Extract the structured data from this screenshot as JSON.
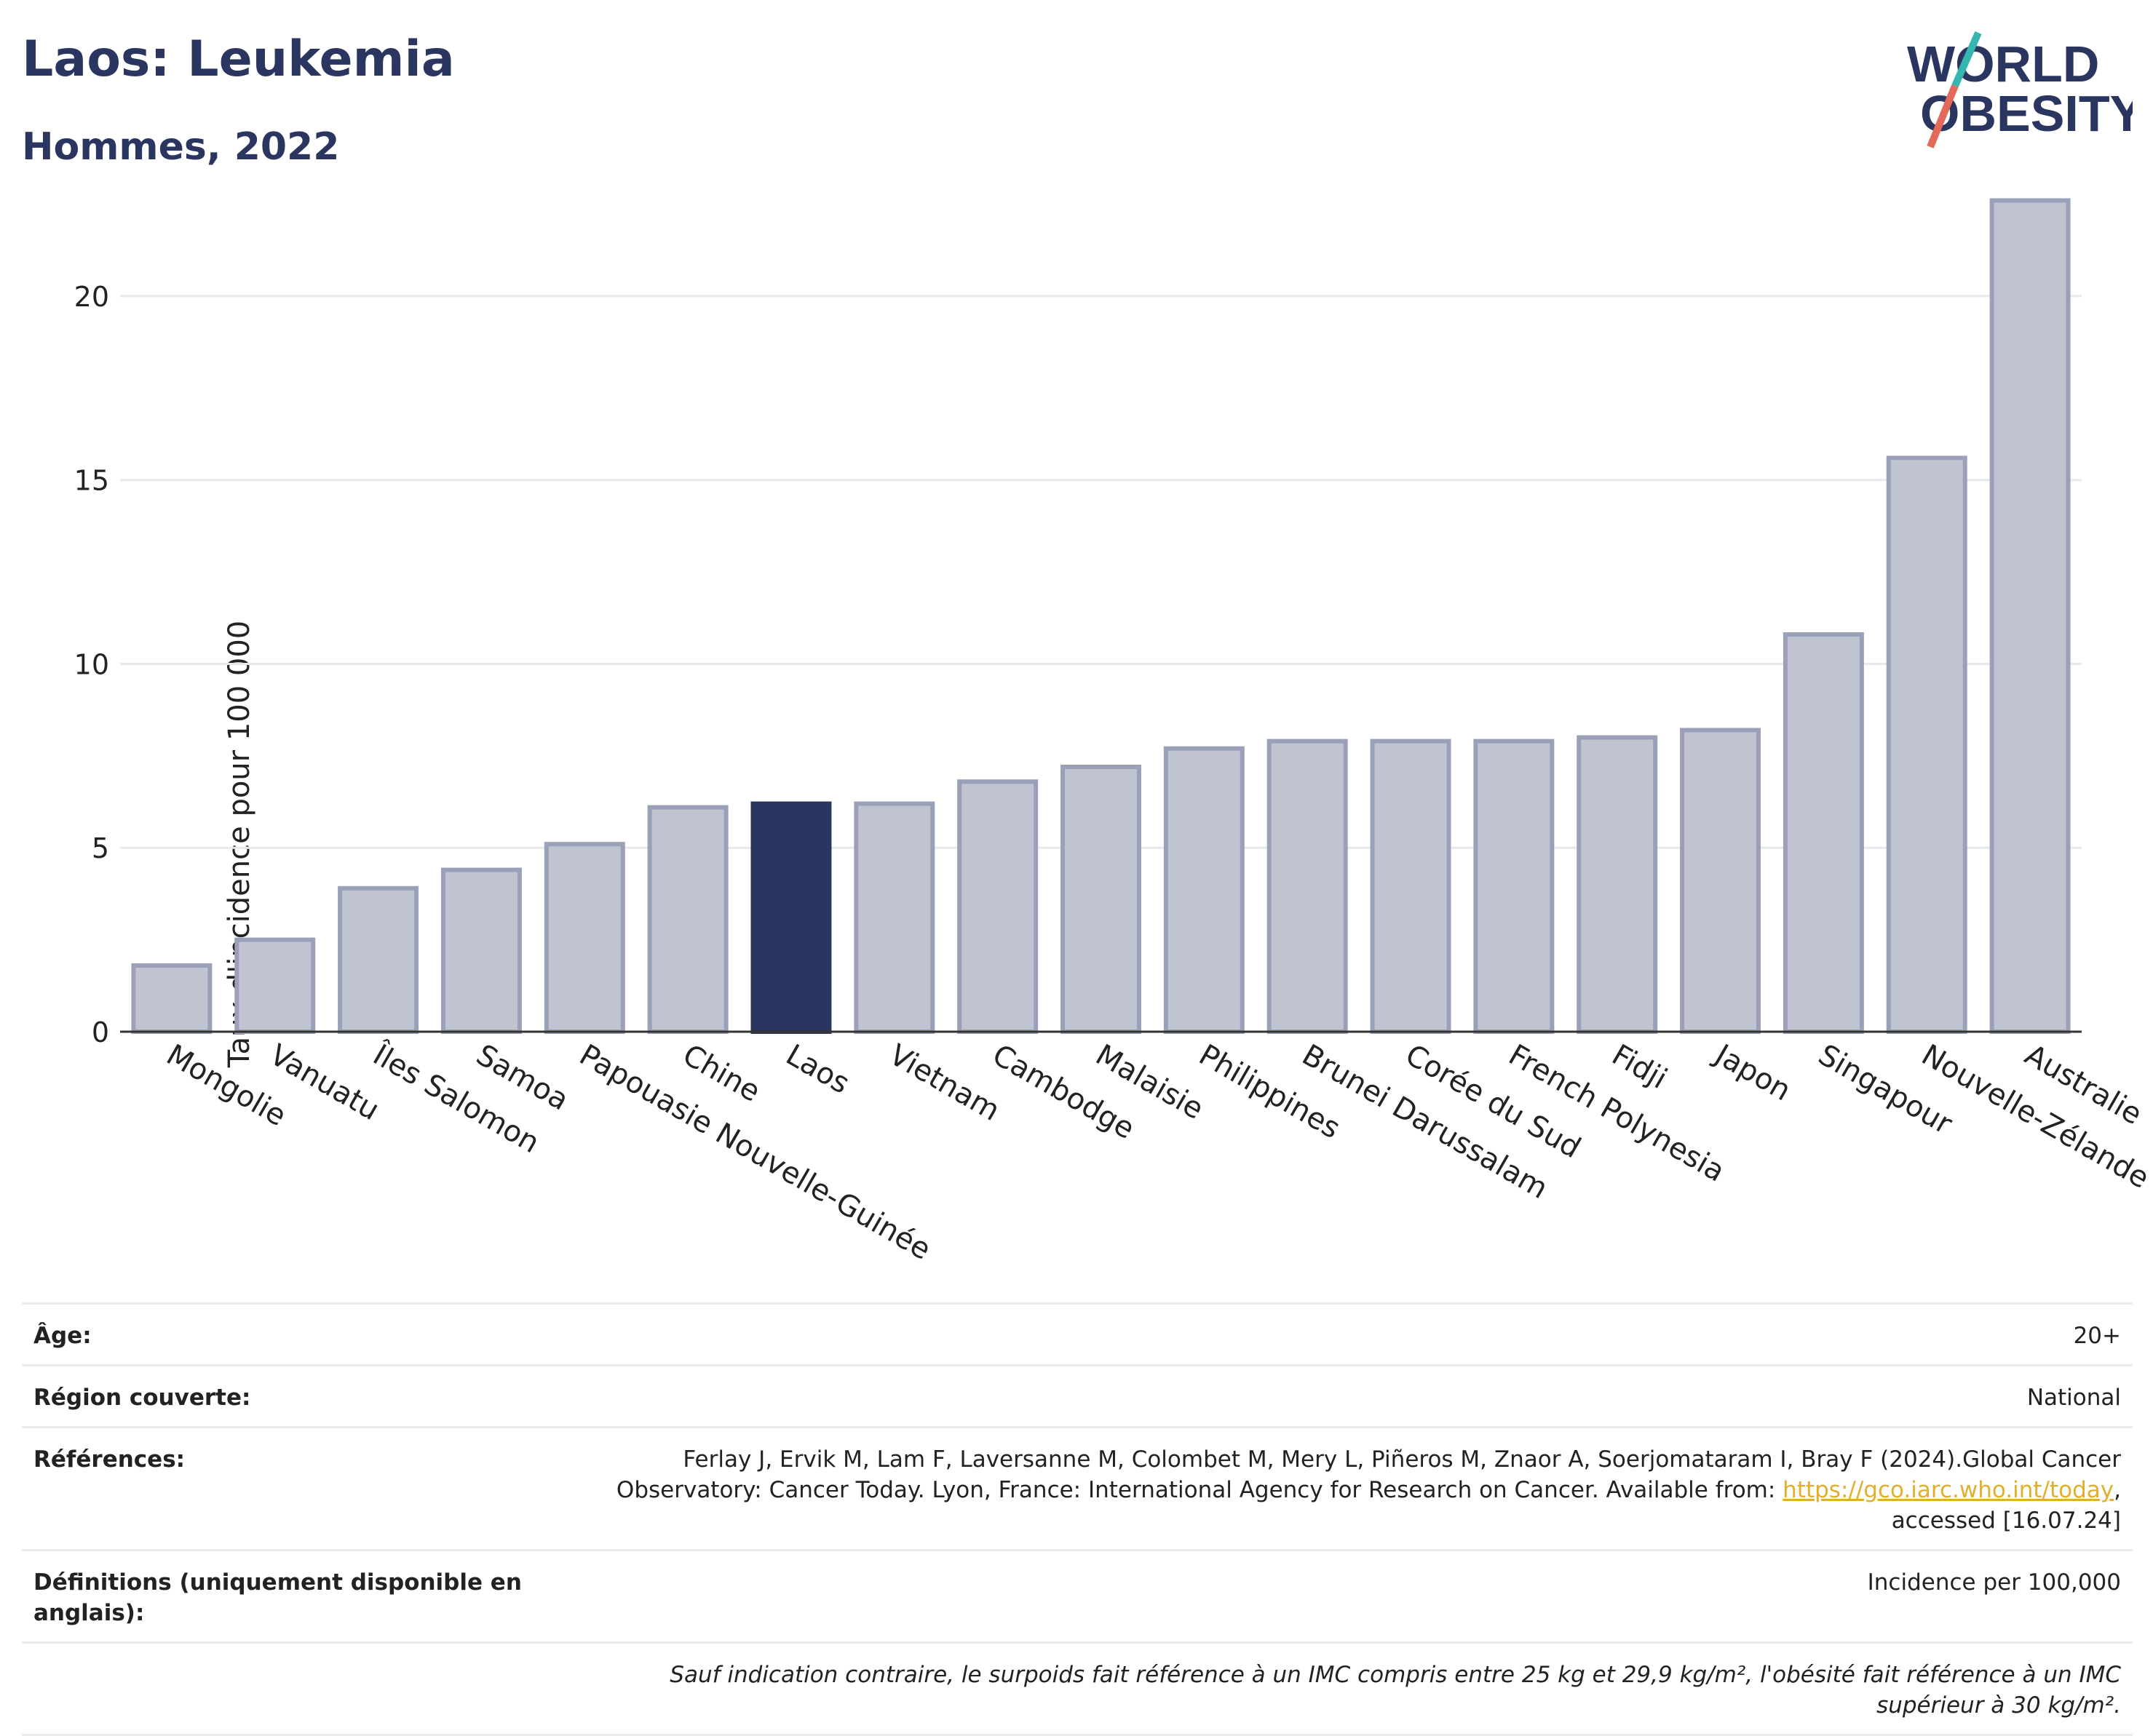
{
  "title": "Laos: Leukemia",
  "subtitle": "Hommes, 2022",
  "logo": {
    "line1": "WORLD",
    "line2": "OBESITY"
  },
  "colors": {
    "highlight": "#2a3560",
    "bar": "#c0c4d1",
    "bar_border": "#9aa0b8",
    "text": "#2a3560",
    "logo_teal": "#36b6b0",
    "logo_red": "#e36a5a"
  },
  "chart_data": {
    "type": "bar",
    "title": "Laos: Leukemia",
    "subtitle": "Hommes, 2022",
    "xlabel": "",
    "ylabel": "Taux d'incidence pour 100 000",
    "ylim": [
      0,
      23.5
    ],
    "yticks": [
      0,
      5,
      10,
      15,
      20
    ],
    "grid": true,
    "highlight": "Laos",
    "categories": [
      "Mongolie",
      "Vanuatu",
      "Îles Salomon",
      "Samoa",
      "Papouasie Nouvelle-Guinée",
      "Chine",
      "Laos",
      "Vietnam",
      "Cambodge",
      "Malaisie",
      "Philippines",
      "Brunei Darussalam",
      "Corée du Sud",
      "French Polynesia",
      "Fidji",
      "Japon",
      "Singapour",
      "Nouvelle-Zélande",
      "Australie"
    ],
    "values": [
      1.8,
      2.5,
      3.9,
      4.4,
      5.1,
      6.1,
      6.2,
      6.2,
      6.8,
      7.2,
      7.7,
      7.9,
      7.9,
      7.9,
      8.0,
      8.2,
      10.8,
      15.6,
      22.6
    ]
  },
  "info": [
    {
      "key": "Âge:",
      "value": "20+"
    },
    {
      "key": "Région couverte:",
      "value": "National"
    },
    {
      "key": "Références:",
      "value_pre": "Ferlay J, Ervik M, Lam F, Laversanne M, Colombet M, Mery L, Piñeros M, Znaor A, Soerjomataram I, Bray F (2024).Global Cancer Observatory: Cancer Today. Lyon, France: International Agency for Research on Cancer. Available from: ",
      "link": "https://gco.iarc.who.int/today",
      "value_post": ", accessed [16.07.24]"
    },
    {
      "key": "Définitions (uniquement disponible en anglais):",
      "value": "Incidence per 100,000"
    }
  ],
  "note": "Sauf indication contraire, le surpoids fait référence à un IMC compris entre 25 kg et 29,9 kg/m², l'obésité fait référence à un IMC supérieur à 30 kg/m²."
}
